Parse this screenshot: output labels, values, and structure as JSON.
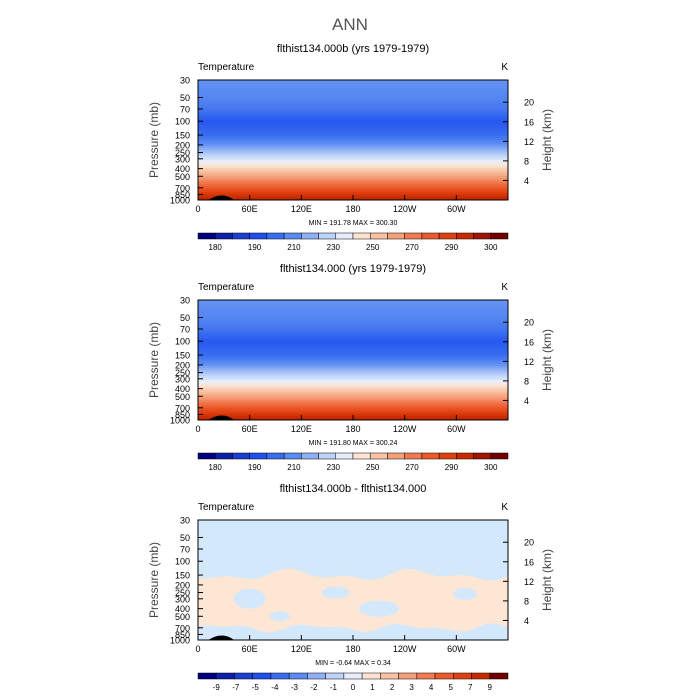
{
  "figure": {
    "title": "ANN"
  },
  "chart_data": [
    {
      "type": "heatmap",
      "title": "flthist134.000b (yrs 1979-1979)",
      "variable": "Temperature",
      "units": "K",
      "xlabel": "",
      "ylabel": "Pressure (mb)",
      "y2label": "Height (km)",
      "x_ticks": [
        "0",
        "60E",
        "120E",
        "180",
        "120W",
        "60W"
      ],
      "x_tick_values": [
        0,
        60,
        120,
        180,
        240,
        300
      ],
      "xlim": [
        0,
        360
      ],
      "y_ticks": [
        "30",
        "50",
        "70",
        "100",
        "150",
        "200",
        "250",
        "300",
        "400",
        "500",
        "700",
        "850",
        "1000"
      ],
      "y_tick_values": [
        30,
        50,
        70,
        100,
        150,
        200,
        250,
        300,
        400,
        500,
        700,
        850,
        1000
      ],
      "ylim": [
        1000,
        30
      ],
      "y_scale": "log",
      "y2_ticks": [
        "4",
        "8",
        "12",
        "16",
        "20"
      ],
      "y2_tick_values": [
        4,
        8,
        12,
        16,
        20
      ],
      "stats": "MIN =  191.78   MAX =  300.30",
      "min": 191.78,
      "max": 300.3,
      "colorbar_labels": [
        "180",
        "190",
        "210",
        "230",
        "250",
        "270",
        "290",
        "300"
      ],
      "colorbar_colors": [
        "#00007f",
        "#0d1fa8",
        "#1a3fd2",
        "#1f4fee",
        "#3a6ef0",
        "#5a8bf3",
        "#8fb0f6",
        "#bcd3fa",
        "#e6eefc",
        "#fde4d2",
        "#fac2a4",
        "#f6a07a",
        "#f27a50",
        "#ec5a2c",
        "#e0400f",
        "#c82a00",
        "#a01500",
        "#700000"
      ],
      "profile": [
        {
          "p": 30,
          "t": 215
        },
        {
          "p": 50,
          "t": 212
        },
        {
          "p": 70,
          "t": 208
        },
        {
          "p": 100,
          "t": 200
        },
        {
          "p": 150,
          "t": 205
        },
        {
          "p": 200,
          "t": 215
        },
        {
          "p": 250,
          "t": 225
        },
        {
          "p": 300,
          "t": 233
        },
        {
          "p": 400,
          "t": 248
        },
        {
          "p": 500,
          "t": 258
        },
        {
          "p": 700,
          "t": 275
        },
        {
          "p": 850,
          "t": 285
        },
        {
          "p": 1000,
          "t": 293
        }
      ]
    },
    {
      "type": "heatmap",
      "title": "flthist134.000 (yrs 1979-1979)",
      "variable": "Temperature",
      "units": "K",
      "xlabel": "",
      "ylabel": "Pressure (mb)",
      "y2label": "Height (km)",
      "x_ticks": [
        "0",
        "60E",
        "120E",
        "180",
        "120W",
        "60W"
      ],
      "x_tick_values": [
        0,
        60,
        120,
        180,
        240,
        300
      ],
      "xlim": [
        0,
        360
      ],
      "y_ticks": [
        "30",
        "50",
        "70",
        "100",
        "150",
        "200",
        "250",
        "300",
        "400",
        "500",
        "700",
        "850",
        "1000"
      ],
      "y_tick_values": [
        30,
        50,
        70,
        100,
        150,
        200,
        250,
        300,
        400,
        500,
        700,
        850,
        1000
      ],
      "ylim": [
        1000,
        30
      ],
      "y_scale": "log",
      "y2_ticks": [
        "4",
        "8",
        "12",
        "16",
        "20"
      ],
      "y2_tick_values": [
        4,
        8,
        12,
        16,
        20
      ],
      "stats": "MIN =  191.80   MAX =  300.24",
      "min": 191.8,
      "max": 300.24,
      "colorbar_labels": [
        "180",
        "190",
        "210",
        "230",
        "250",
        "270",
        "290",
        "300"
      ],
      "colorbar_colors": [
        "#00007f",
        "#0d1fa8",
        "#1a3fd2",
        "#1f4fee",
        "#3a6ef0",
        "#5a8bf3",
        "#8fb0f6",
        "#bcd3fa",
        "#e6eefc",
        "#fde4d2",
        "#fac2a4",
        "#f6a07a",
        "#f27a50",
        "#ec5a2c",
        "#e0400f",
        "#c82a00",
        "#a01500",
        "#700000"
      ],
      "profile": [
        {
          "p": 30,
          "t": 215
        },
        {
          "p": 50,
          "t": 212
        },
        {
          "p": 70,
          "t": 208
        },
        {
          "p": 100,
          "t": 200
        },
        {
          "p": 150,
          "t": 205
        },
        {
          "p": 200,
          "t": 215
        },
        {
          "p": 250,
          "t": 225
        },
        {
          "p": 300,
          "t": 233
        },
        {
          "p": 400,
          "t": 248
        },
        {
          "p": 500,
          "t": 258
        },
        {
          "p": 700,
          "t": 275
        },
        {
          "p": 850,
          "t": 285
        },
        {
          "p": 1000,
          "t": 293
        }
      ]
    },
    {
      "type": "heatmap",
      "title": "flthist134.000b - flthist134.000",
      "variable": "Temperature",
      "units": "K",
      "xlabel": "",
      "ylabel": "Pressure (mb)",
      "y2label": "Height (km)",
      "x_ticks": [
        "0",
        "60E",
        "120E",
        "180",
        "120W",
        "60W"
      ],
      "x_tick_values": [
        0,
        60,
        120,
        180,
        240,
        300
      ],
      "xlim": [
        0,
        360
      ],
      "y_ticks": [
        "30",
        "50",
        "70",
        "100",
        "150",
        "200",
        "250",
        "300",
        "400",
        "500",
        "700",
        "850",
        "1000"
      ],
      "y_tick_values": [
        30,
        50,
        70,
        100,
        150,
        200,
        250,
        300,
        400,
        500,
        700,
        850,
        1000
      ],
      "ylim": [
        1000,
        30
      ],
      "y_scale": "log",
      "y2_ticks": [
        "4",
        "8",
        "12",
        "16",
        "20"
      ],
      "y2_tick_values": [
        4,
        8,
        12,
        16,
        20
      ],
      "stats": "MIN =   -0.64   MAX =    0.34",
      "min": -0.64,
      "max": 0.34,
      "colorbar_labels": [
        "-9",
        "-7",
        "-5",
        "-4",
        "-3",
        "-2",
        "-1",
        "0",
        "1",
        "2",
        "3",
        "4",
        "5",
        "7",
        "9"
      ],
      "colorbar_colors": [
        "#00007f",
        "#0d1fa8",
        "#1a3fd2",
        "#1f4fee",
        "#3a6ef0",
        "#5a8bf3",
        "#8fb0f6",
        "#bcd3fa",
        "#e6eefc",
        "#fde4d2",
        "#fac2a4",
        "#f6a07a",
        "#f27a50",
        "#ec5a2c",
        "#e0400f",
        "#c82a00",
        "#700000"
      ],
      "background_color": "#d4e8fb",
      "positive_patch_color": "#fde7d4",
      "positive_band_p": [
        150,
        700
      ]
    }
  ]
}
